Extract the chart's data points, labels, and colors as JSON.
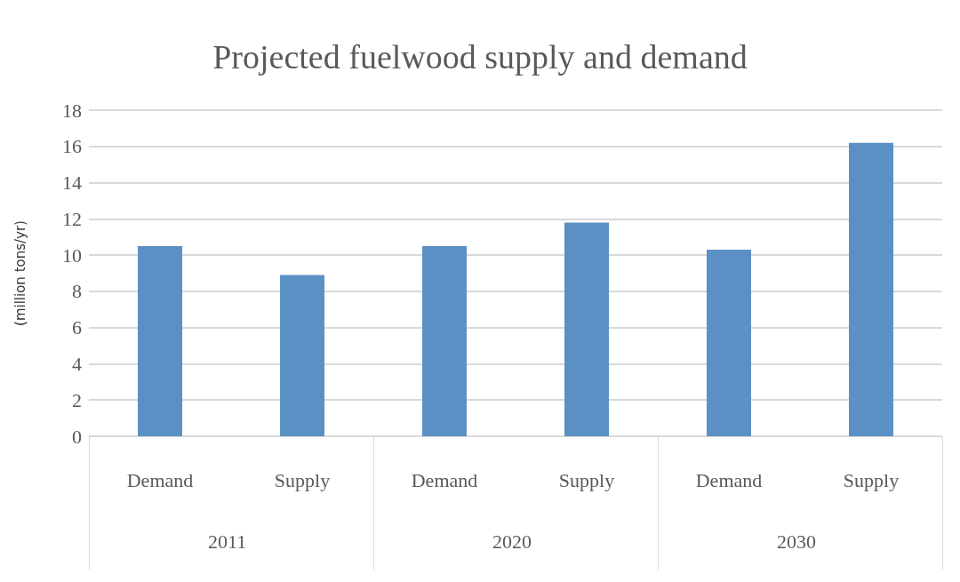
{
  "chart_data": {
    "type": "bar",
    "title": "Projected fuelwood supply and demand",
    "ylabel": "(million tons/yr)",
    "categories": [
      "Demand",
      "Supply",
      "Demand",
      "Supply",
      "Demand",
      "Supply"
    ],
    "values": [
      10.5,
      8.9,
      10.5,
      11.8,
      10.3,
      16.2
    ],
    "color": "#5b90c4",
    "ylim": [
      0,
      18
    ],
    "yticks": [
      0,
      2,
      4,
      6,
      8,
      10,
      12,
      14,
      16,
      18
    ],
    "grid": true,
    "annotations": [
      "2011",
      "2020",
      "2030"
    ]
  }
}
